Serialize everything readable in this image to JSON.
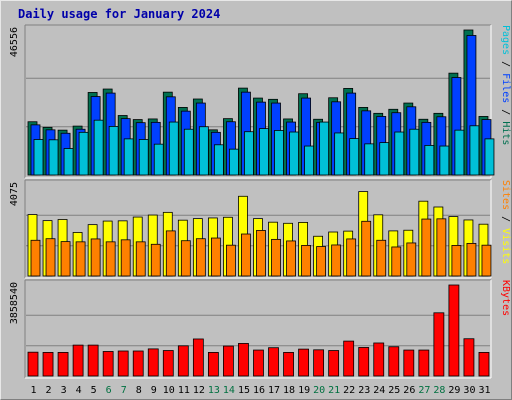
{
  "chart_data": {
    "type": "bar",
    "title": "Daily usage for January 2024",
    "categories": [
      "1",
      "2",
      "3",
      "4",
      "5",
      "6",
      "7",
      "8",
      "9",
      "10",
      "11",
      "12",
      "13",
      "14",
      "15",
      "16",
      "17",
      "18",
      "19",
      "20",
      "21",
      "22",
      "23",
      "24",
      "25",
      "26",
      "27",
      "28",
      "29",
      "30",
      "31"
    ],
    "weekend_days": [
      "6",
      "7",
      "13",
      "14",
      "20",
      "21",
      "27",
      "28"
    ],
    "weekend_color": "#007040",
    "weekday_color": "#000000",
    "panels": [
      {
        "name": "hits-files-pages",
        "ymax_label": "46556",
        "ymax": 46556,
        "side_label": [
          {
            "text": "Pages",
            "color": "#00c0d8"
          },
          {
            "text": " / ",
            "color": "#000000"
          },
          {
            "text": "Files",
            "color": "#0040ff"
          },
          {
            "text": " / ",
            "color": "#000000"
          },
          {
            "text": "Hits",
            "color": "#007050"
          }
        ],
        "gridlines": [
          0.333,
          0.667
        ],
        "series": [
          {
            "name": "Hits",
            "color": "#007050",
            "values": [
              17100,
              15300,
              14400,
              15700,
              26500,
              27600,
              19100,
              17800,
              18000,
              26600,
              21700,
              24400,
              14500,
              18100,
              27900,
              24700,
              24300,
              18000,
              26100,
              17900,
              24800,
              27800,
              21700,
              19800,
              21100,
              23100,
              17900,
              19800,
              32700,
              46556,
              18800
            ]
          },
          {
            "name": "Files",
            "color": "#0040ff",
            "values": [
              16100,
              14500,
              13400,
              14700,
              25200,
              26300,
              18100,
              16800,
              16900,
              25100,
              20500,
              23100,
              13700,
              17100,
              26600,
              23400,
              23100,
              17000,
              24700,
              16900,
              23500,
              26300,
              20600,
              18800,
              20000,
              21900,
              16900,
              18700,
              31300,
              44800,
              17800
            ]
          },
          {
            "name": "Pages",
            "color": "#00c0d8",
            "values": [
              11400,
              11300,
              8500,
              13700,
              17600,
              15600,
              11600,
              11400,
              9900,
              17000,
              14700,
              15500,
              9700,
              8300,
              13900,
              14900,
              14300,
              13800,
              9300,
              17000,
              13500,
              11700,
              10000,
              10400,
              13800,
              14700,
              9500,
              9300,
              14400,
              15800,
              11600
            ]
          }
        ]
      },
      {
        "name": "visits-sites",
        "ymax_label": "4075",
        "ymax": 4075,
        "side_label": [
          {
            "text": "Sites",
            "color": "#ff8000"
          },
          {
            "text": " / ",
            "color": "#000000"
          },
          {
            "text": "Visits",
            "color": "#ffff00"
          }
        ],
        "gridlines": [
          0.333,
          0.667
        ],
        "series": [
          {
            "name": "Visits",
            "color": "#ffff00",
            "values": [
              2750,
              2480,
              2530,
              1950,
              2300,
              2460,
              2470,
              2640,
              2730,
              2850,
              2500,
              2570,
              2600,
              2630,
              3570,
              2570,
              2410,
              2360,
              2400,
              1780,
              1970,
              2010,
              3780,
              2740,
              2020,
              2050,
              3350,
              3090,
              2660,
              2510,
              2320
            ]
          },
          {
            "name": "Sites",
            "color": "#ff8000",
            "values": [
              1600,
              1670,
              1540,
              1530,
              1660,
              1530,
              1620,
              1530,
              1420,
              2020,
              1580,
              1670,
              1700,
              1380,
              1880,
              2040,
              1640,
              1570,
              1370,
              1320,
              1390,
              1660,
              2450,
              1600,
              1300,
              1480,
              2550,
              2560,
              1370,
              1460,
              1380
            ]
          }
        ]
      },
      {
        "name": "kbytes",
        "ymax_label": "3858540",
        "ymax": 3858540,
        "side_label": [
          {
            "text": "KBytes",
            "color": "#ff0000"
          }
        ],
        "gridlines": [
          0.333,
          0.667
        ],
        "series": [
          {
            "name": "KBytes",
            "color": "#ff0000",
            "values": [
              1010000,
              1000000,
              1000000,
              1310000,
              1310000,
              1040000,
              1060000,
              1060000,
              1150000,
              1080000,
              1280000,
              1570000,
              1000000,
              1270000,
              1380000,
              1100000,
              1200000,
              1000000,
              1140000,
              1110000,
              1080000,
              1480000,
              1210000,
              1400000,
              1240000,
              1100000,
              1100000,
              2680000,
              3858540,
              1580000,
              1000000
            ]
          }
        ]
      }
    ]
  }
}
